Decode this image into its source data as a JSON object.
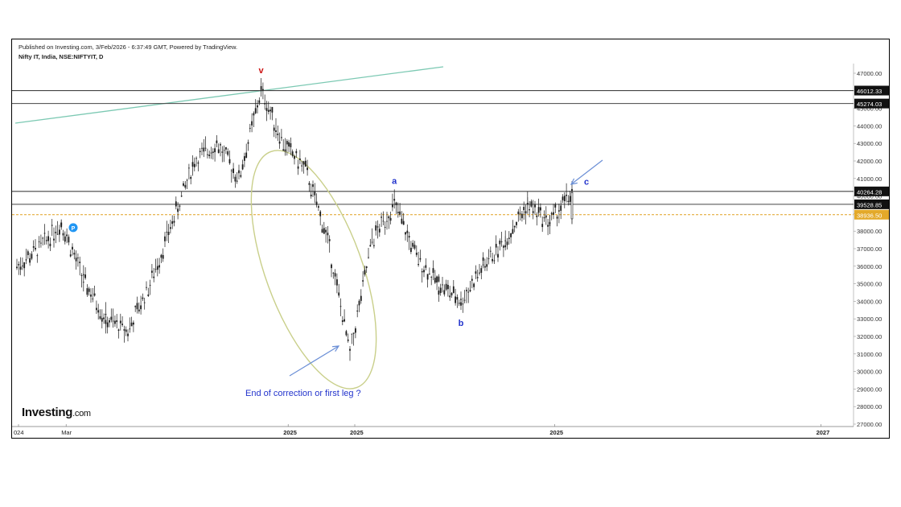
{
  "header": {
    "published": "Published on Investing.com, 3/Feb/2026 - 6:37:49 GMT, Powered by TradingView.",
    "symbol": "Nifty IT, India, NSE:NIFTYIT, D"
  },
  "logo": {
    "main": "Investing",
    "suffix": ".com"
  },
  "colors": {
    "candles": "#1a1a1a",
    "hline": "#444444",
    "trendline": "#7cc9b3",
    "ellipse": "#c9cf8a",
    "dashed_line": "#e0a020",
    "annotation": "#2233cc",
    "arrow": "#6b8fd6",
    "wave_v": "#cc1111",
    "pivot_badge": "#2196f3"
  },
  "chart_data": {
    "type": "candlestick",
    "title": "Nifty IT, India, NSE:NIFTYIT, D",
    "y_axis": {
      "ylim": [
        26800,
        47800
      ],
      "ticks": [
        27000,
        28000,
        29000,
        30000,
        31000,
        32000,
        33000,
        34000,
        35000,
        36000,
        37000,
        38000,
        39000,
        40000,
        41000,
        42000,
        43000,
        44000,
        45000,
        46000,
        47000
      ],
      "tick_labels": [
        "27000.00",
        "28000.00",
        "29000.00",
        "30000.00",
        "31000.00",
        "32000.00",
        "33000.00",
        "34000.00",
        "35000.00",
        "36000.00",
        "37000.00",
        "38000.00",
        "39000.00",
        "40000.00",
        "41000.00",
        "42000.00",
        "43000.00",
        "44000.00",
        "45000.00",
        "46000.00",
        "47000.00"
      ]
    },
    "x_axis": {
      "labels": [
        {
          "text": "024",
          "date": "2024-01"
        },
        {
          "text": "Mar",
          "date": "2024-03"
        },
        {
          "text": "2025",
          "date": "2025-01"
        },
        {
          "text": "2025",
          "date": "2025-04"
        },
        {
          "text": "2025",
          "date": "2026-01"
        },
        {
          "text": "2027",
          "date": "2027-01"
        }
      ]
    },
    "horizontal_levels": [
      {
        "value": 46012.33,
        "label": "46012.33",
        "style": "solid"
      },
      {
        "value": 45274.03,
        "label": "45274.03",
        "style": "solid"
      },
      {
        "value": 40264.28,
        "label": "40264.28",
        "style": "solid"
      },
      {
        "value": 39528.85,
        "label": "39528.85",
        "style": "solid"
      },
      {
        "value": 38936.5,
        "label": "38936.50",
        "style": "dashed-orange"
      }
    ],
    "price_path": [
      {
        "date": "2024-01",
        "value": 36000
      },
      {
        "date": "2024-02",
        "value": 37000
      },
      {
        "date": "2024-03",
        "value": 38500
      },
      {
        "date": "2024-04",
        "value": 35200
      },
      {
        "date": "2024-05",
        "value": 33000
      },
      {
        "date": "2024-06",
        "value": 32300
      },
      {
        "date": "2024-07",
        "value": 35000
      },
      {
        "date": "2024-08",
        "value": 38500
      },
      {
        "date": "2024-09",
        "value": 42000
      },
      {
        "date": "2024-10",
        "value": 43000
      },
      {
        "date": "2024-11",
        "value": 41000
      },
      {
        "date": "2024-12",
        "value": 46000
      },
      {
        "date": "2025-01",
        "value": 43000
      },
      {
        "date": "2025-02",
        "value": 41500
      },
      {
        "date": "2025-03",
        "value": 37500
      },
      {
        "date": "2025-04",
        "value": 31000
      },
      {
        "date": "2025-05",
        "value": 37500
      },
      {
        "date": "2025-06",
        "value": 39500
      },
      {
        "date": "2025-07",
        "value": 36500
      },
      {
        "date": "2025-08",
        "value": 35000
      },
      {
        "date": "2025-09",
        "value": 34000
      },
      {
        "date": "2025-10",
        "value": 36000
      },
      {
        "date": "2025-11",
        "value": 37500
      },
      {
        "date": "2025-12",
        "value": 39500
      },
      {
        "date": "2026-01",
        "value": 38500
      },
      {
        "date": "2026-02",
        "value": 40200
      }
    ],
    "wave_labels": [
      {
        "text": "v",
        "date": "2024-12",
        "value": 47000
      },
      {
        "text": "a",
        "date": "2025-06",
        "value": 40700
      },
      {
        "text": "b",
        "date": "2025-09",
        "value": 32600
      },
      {
        "text": "c",
        "date": "2026-02",
        "value": 40650
      }
    ],
    "annotations": [
      {
        "text": "End of correction or first leg ?"
      }
    ],
    "pivot_badge": {
      "text": "P",
      "date": "2024-03",
      "value": 38200
    }
  }
}
